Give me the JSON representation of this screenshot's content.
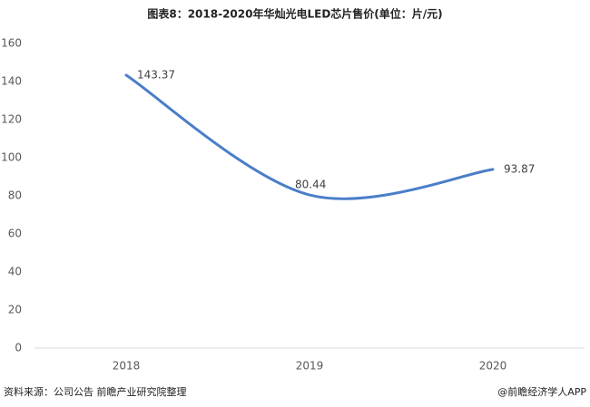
{
  "chart_data": {
    "type": "line",
    "title": "图表8：2018-2020年华灿光电LED芯片售价(单位：片/元)",
    "categories": [
      "2018",
      "2019",
      "2020"
    ],
    "series": [
      {
        "name": "售价",
        "color": "#4a7ec8",
        "values": [
          143.37,
          80.44,
          93.87
        ]
      }
    ],
    "ylim": [
      0,
      160
    ],
    "yticks": [
      0,
      20,
      40,
      60,
      80,
      100,
      120,
      140,
      160
    ],
    "grid": false,
    "smooth": true,
    "data_labels": true
  },
  "footer": {
    "source": "资料来源：公司公告 前瞻产业研究院整理",
    "credit": "@前瞻经济学人APP"
  }
}
